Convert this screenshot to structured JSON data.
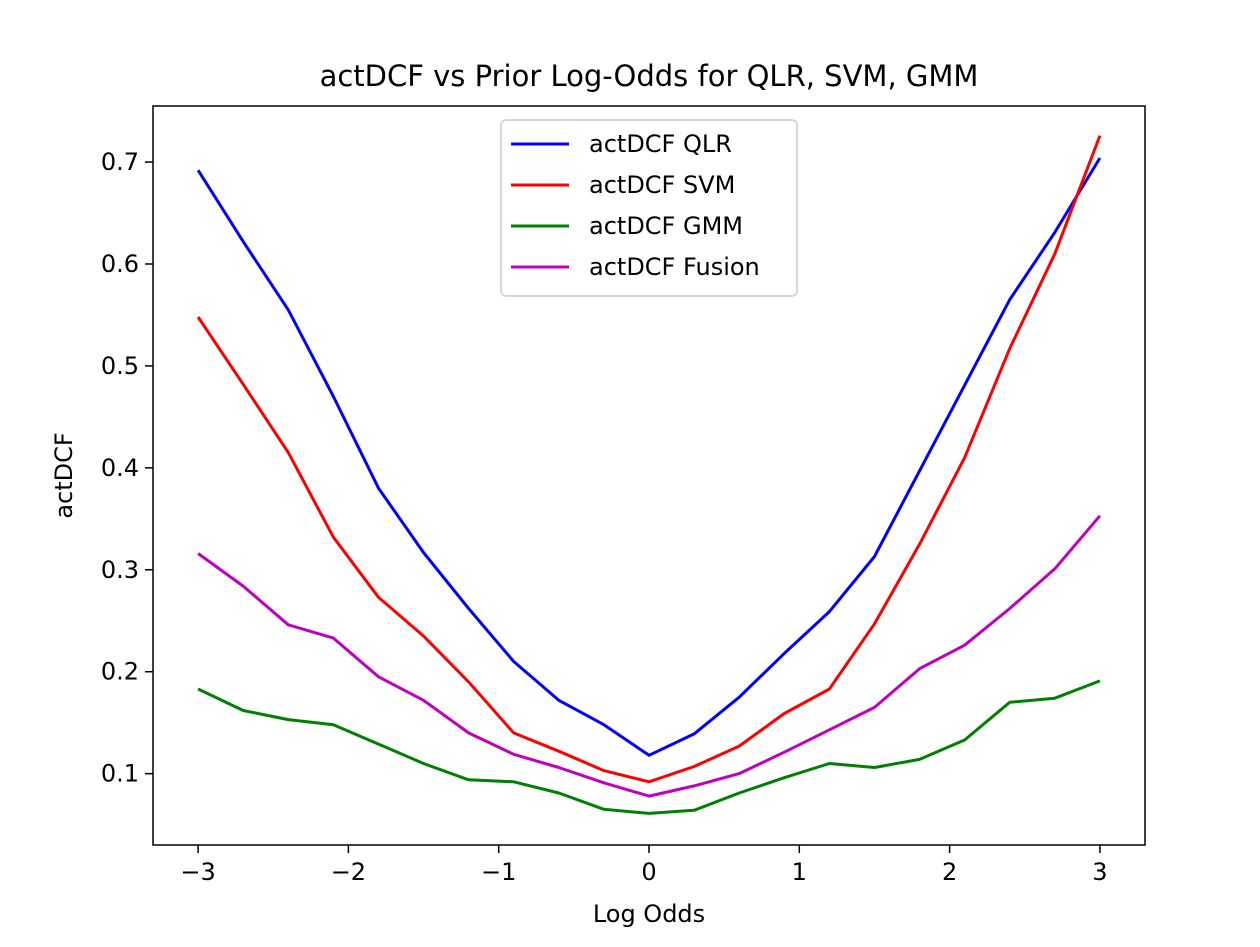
{
  "chart_data": {
    "type": "line",
    "title": "actDCF vs Prior Log-Odds for QLR, SVM, GMM",
    "xlabel": "Log Odds",
    "ylabel": "actDCF",
    "xlim": [
      -3.3,
      3.3
    ],
    "ylim": [
      0.03,
      0.755
    ],
    "xticks": [
      -3,
      -2,
      -1,
      0,
      1,
      2,
      3
    ],
    "xtick_labels": [
      "−3",
      "−2",
      "−1",
      "0",
      "1",
      "2",
      "3"
    ],
    "yticks": [
      0.1,
      0.2,
      0.3,
      0.4,
      0.5,
      0.6,
      0.7
    ],
    "ytick_labels": [
      "0.1",
      "0.2",
      "0.3",
      "0.4",
      "0.5",
      "0.6",
      "0.7"
    ],
    "grid": false,
    "legend_position": "upper center",
    "x": [
      -3.0,
      -2.7,
      -2.4,
      -2.1,
      -1.8,
      -1.5,
      -1.2,
      -0.9,
      -0.6,
      -0.3,
      0.0,
      0.3,
      0.6,
      0.9,
      1.2,
      1.5,
      1.8,
      2.1,
      2.4,
      2.7,
      3.0
    ],
    "series": [
      {
        "name": "actDCF QLR",
        "color": "#0000ff",
        "values": [
          0.692,
          0.622,
          0.555,
          0.47,
          0.38,
          0.317,
          0.262,
          0.21,
          0.172,
          0.148,
          0.118,
          0.139,
          0.175,
          0.218,
          0.259,
          0.313,
          0.397,
          0.481,
          0.565,
          0.631,
          0.704
        ]
      },
      {
        "name": "actDCF SVM",
        "color": "#ff0000",
        "values": [
          0.548,
          0.482,
          0.415,
          0.332,
          0.273,
          0.235,
          0.19,
          0.14,
          0.122,
          0.103,
          0.092,
          0.107,
          0.127,
          0.159,
          0.183,
          0.247,
          0.325,
          0.41,
          0.517,
          0.61,
          0.726
        ]
      },
      {
        "name": "actDCF GMM",
        "color": "#008000",
        "values": [
          0.183,
          0.162,
          0.153,
          0.148,
          0.129,
          0.11,
          0.094,
          0.092,
          0.081,
          0.065,
          0.061,
          0.064,
          0.081,
          0.096,
          0.11,
          0.106,
          0.114,
          0.133,
          0.17,
          0.174,
          0.191
        ]
      },
      {
        "name": "actDCF Fusion",
        "color": "#bf00bf",
        "values": [
          0.316,
          0.284,
          0.246,
          0.233,
          0.195,
          0.172,
          0.14,
          0.119,
          0.106,
          0.091,
          0.078,
          0.088,
          0.1,
          0.121,
          0.143,
          0.165,
          0.203,
          0.226,
          0.262,
          0.301,
          0.353
        ]
      }
    ]
  }
}
